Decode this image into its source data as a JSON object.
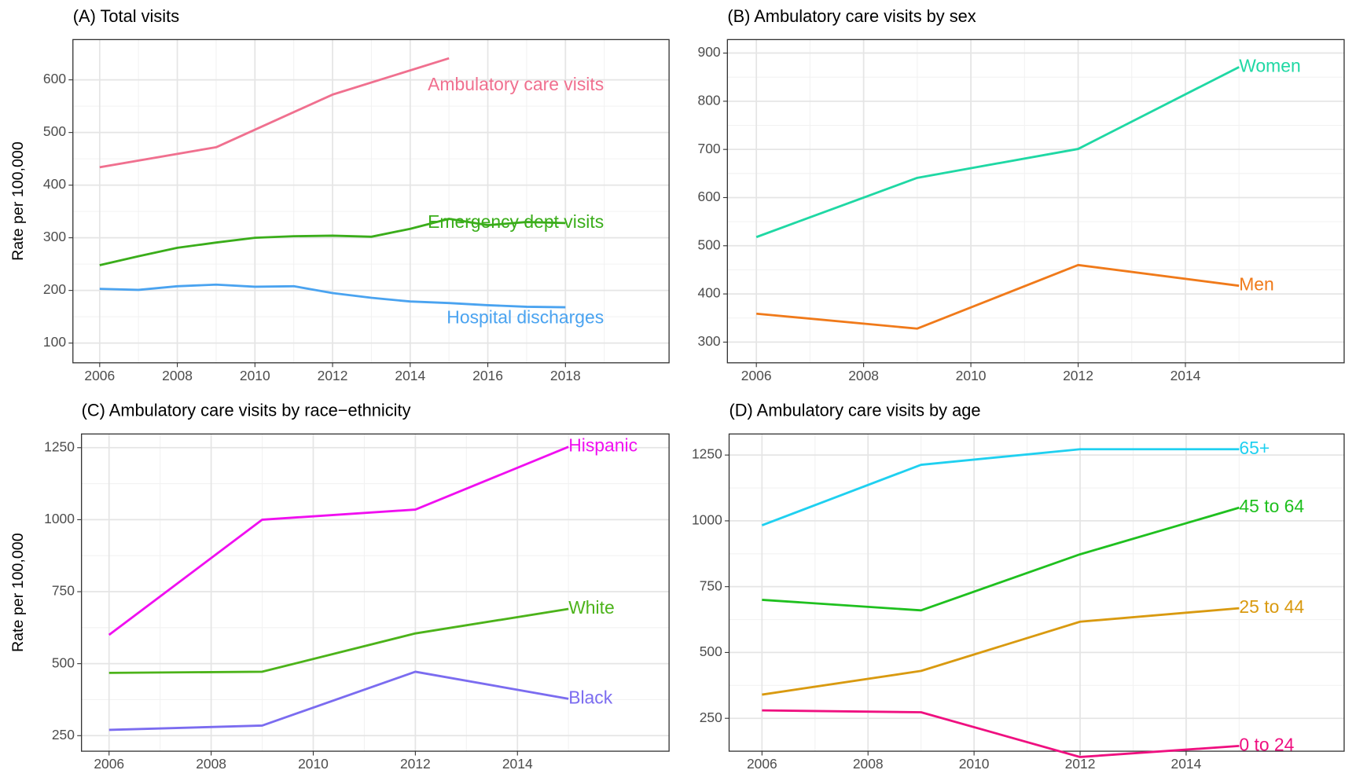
{
  "chart_data": [
    {
      "type": "line",
      "title": "(A) Total visits",
      "y_label": "Rate per 100,000",
      "xlim": [
        2005.31,
        2020.67
      ],
      "xticks": [
        2006,
        2008,
        2010,
        2012,
        2014,
        2016,
        2018
      ],
      "ylim": [
        62.5,
        676.5
      ],
      "yticks": [
        100,
        200,
        300,
        400,
        500,
        600
      ],
      "grid": true,
      "series": [
        {
          "name": "Ambulatory care visits",
          "color": "#f0708f",
          "x": [
            2006,
            2009,
            2012,
            2015
          ],
          "values": [
            434,
            472,
            572,
            641
          ]
        },
        {
          "name": "Emergency dept visits",
          "color": "#3aad1a",
          "x": [
            2006,
            2007,
            2008,
            2009,
            2010,
            2011,
            2012,
            2013,
            2014,
            2015,
            2016,
            2017,
            2018
          ],
          "values": [
            248,
            265,
            281,
            291,
            300,
            303,
            304,
            302,
            317,
            336,
            324,
            330,
            328
          ]
        },
        {
          "name": "Hospital discharges",
          "color": "#4aa3f0",
          "x": [
            2006,
            2007,
            2008,
            2009,
            2010,
            2011,
            2012,
            2013,
            2014,
            2015,
            2016,
            2017,
            2018
          ],
          "values": [
            203,
            201,
            208,
            211,
            207,
            208,
            195,
            186,
            179,
            176,
            172,
            169,
            168
          ]
        }
      ]
    },
    {
      "type": "line",
      "title": "(B) Ambulatory care visits by sex",
      "xlim": [
        2005.46,
        2016.96
      ],
      "xticks": [
        2006,
        2008,
        2010,
        2012,
        2014
      ],
      "ylim": [
        257,
        928
      ],
      "yticks": [
        300,
        400,
        500,
        600,
        700,
        800,
        900
      ],
      "grid": true,
      "x": [
        2006,
        2009,
        2012,
        2015
      ],
      "series": [
        {
          "name": "Women",
          "color": "#1fd8a4",
          "values": [
            518,
            641,
            701,
            871
          ]
        },
        {
          "name": "Men",
          "color": "#f07a1a",
          "values": [
            359,
            328,
            460,
            417
          ]
        }
      ]
    },
    {
      "type": "line",
      "title": "(C) Ambulatory care visits by race−ethnicity",
      "y_label": "Rate per 100,000",
      "xlim": [
        2005.46,
        2016.97
      ],
      "xticks": [
        2006,
        2008,
        2010,
        2012,
        2014
      ],
      "ylim": [
        196,
        1297.6
      ],
      "yticks": [
        250,
        500,
        750,
        1000,
        1250
      ],
      "grid": true,
      "x": [
        2006,
        2009,
        2012,
        2015
      ],
      "series": [
        {
          "name": "Hispanic",
          "color": "#f00ff0",
          "values": [
            600,
            1000,
            1035,
            1253
          ]
        },
        {
          "name": "White",
          "color": "#4cb31a",
          "values": [
            468,
            472,
            605,
            690
          ]
        },
        {
          "name": "Black",
          "color": "#7b6cf0",
          "values": [
            270,
            285,
            472,
            378
          ]
        }
      ]
    },
    {
      "type": "line",
      "title": "(D) Ambulatory care visits by age",
      "xlim": [
        2005.38,
        2016.98
      ],
      "xticks": [
        2006,
        2008,
        2010,
        2012,
        2014
      ],
      "ylim": [
        125,
        1330
      ],
      "yticks": [
        250,
        500,
        750,
        1000,
        1250
      ],
      "grid": true,
      "x": [
        2006,
        2009,
        2012,
        2015
      ],
      "series": [
        {
          "name": "65+",
          "color": "#1fd0f0",
          "values": [
            983,
            1213,
            1272,
            1272
          ]
        },
        {
          "name": "45 to 64",
          "color": "#1fc01f",
          "values": [
            700,
            660,
            873,
            1050
          ]
        },
        {
          "name": "25 to 44",
          "color": "#d99a10",
          "values": [
            340,
            430,
            617,
            668
          ]
        },
        {
          "name": "0 to 24",
          "color": "#ef1080",
          "values": [
            280,
            273,
            103,
            145
          ]
        }
      ]
    }
  ]
}
